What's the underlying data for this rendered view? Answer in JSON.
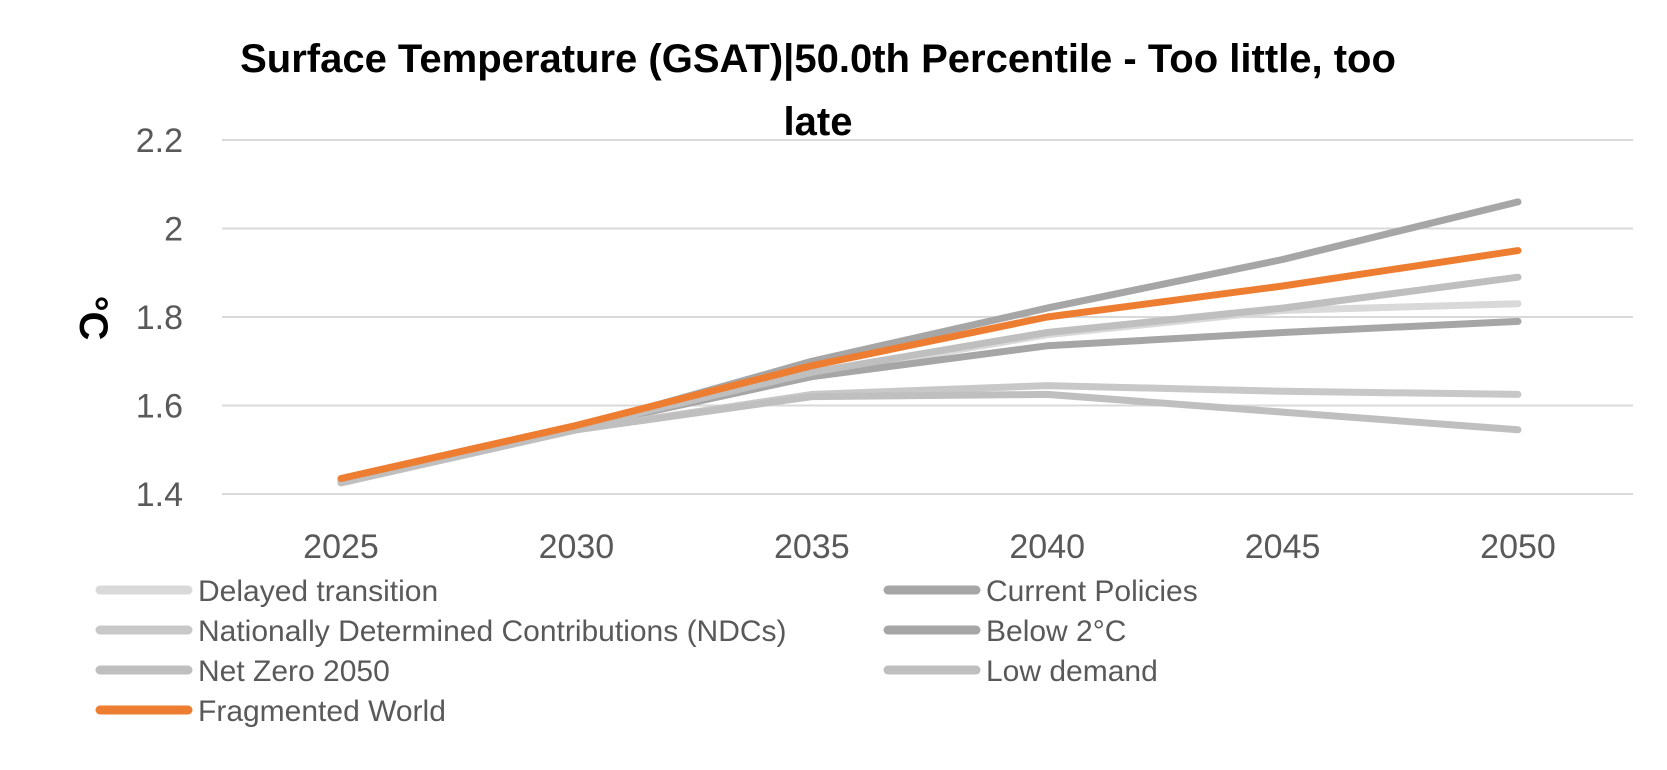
{
  "chart_data": {
    "type": "line",
    "title_lines": [
      "Surface Temperature (GSAT)|50.0th Percentile - Too little, too",
      "late"
    ],
    "ylabel": "°C",
    "xlabel": "",
    "x": [
      2025,
      2030,
      2035,
      2040,
      2045,
      2050
    ],
    "ylim": [
      1.4,
      2.2
    ],
    "yticks": [
      "1.4",
      "1.6",
      "1.8",
      "2",
      "2.2"
    ],
    "grid": true,
    "legend_position": "bottom",
    "series": [
      {
        "name": "Delayed transition",
        "color": "#d9d9d9",
        "values": [
          1.43,
          1.55,
          1.67,
          1.76,
          1.815,
          1.83
        ]
      },
      {
        "name": "Current Policies",
        "color": "#a6a6a6",
        "values": [
          1.43,
          1.55,
          1.665,
          1.735,
          1.765,
          1.79
        ]
      },
      {
        "name": "Nationally Determined Contributions (NDCs)",
        "color": "#c8c8c8",
        "values": [
          1.43,
          1.545,
          1.625,
          1.645,
          1.632,
          1.625
        ]
      },
      {
        "name": "Below 2°C",
        "color": "#a6a6a6",
        "values": [
          1.43,
          1.55,
          1.7,
          1.82,
          1.93,
          2.06
        ]
      },
      {
        "name": "Net Zero 2050",
        "color": "#bfbfbf",
        "values": [
          1.425,
          1.545,
          1.62,
          1.625,
          1.585,
          1.545
        ]
      },
      {
        "name": "Low demand",
        "color": "#bfbfbf",
        "values": [
          1.43,
          1.55,
          1.675,
          1.765,
          1.82,
          1.89
        ]
      },
      {
        "name": "Fragmented World",
        "color": "#ed7d31",
        "values": [
          1.435,
          1.555,
          1.69,
          1.8,
          1.87,
          1.95
        ]
      }
    ]
  }
}
